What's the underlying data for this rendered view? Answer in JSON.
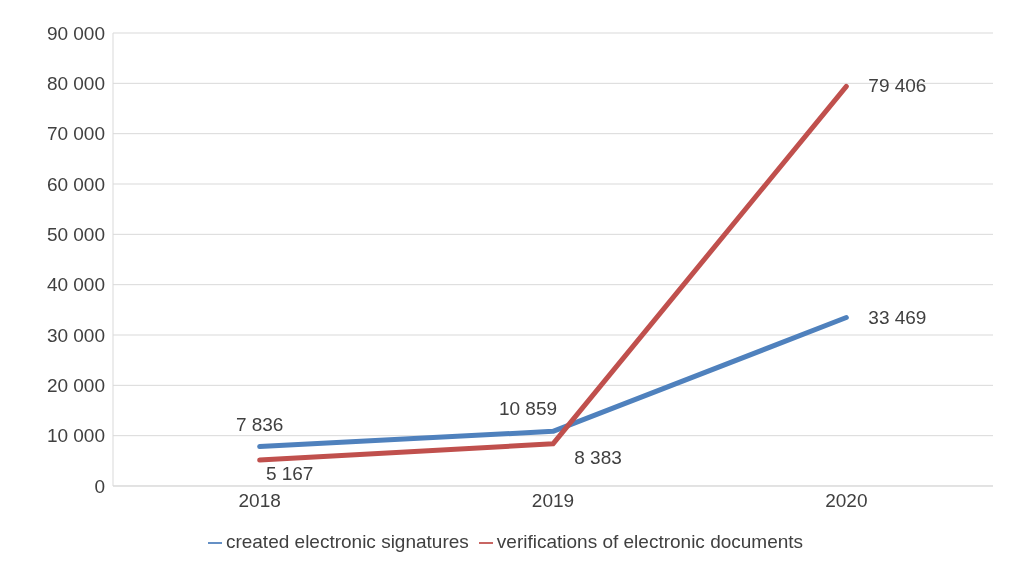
{
  "chart_data": {
    "type": "line",
    "categories": [
      "2018",
      "2019",
      "2020"
    ],
    "series": [
      {
        "name": "created electronic signatures",
        "color": "#4f81bd",
        "values": [
          7836,
          10859,
          33469
        ],
        "value_labels": [
          "7 836",
          "10 859",
          "33 469"
        ]
      },
      {
        "name": "verifications of electronic documents",
        "color": "#c0504d",
        "values": [
          5167,
          8383,
          79406
        ],
        "value_labels": [
          "5 167",
          "8 383",
          "79 406"
        ]
      }
    ],
    "ylim": [
      0,
      90000
    ],
    "yticks": [
      {
        "value": 0,
        "label": "0"
      },
      {
        "value": 10000,
        "label": "10 000"
      },
      {
        "value": 20000,
        "label": "20 000"
      },
      {
        "value": 30000,
        "label": "30 000"
      },
      {
        "value": 40000,
        "label": "40 000"
      },
      {
        "value": 50000,
        "label": "50 000"
      },
      {
        "value": 60000,
        "label": "60 000"
      },
      {
        "value": 70000,
        "label": "70 000"
      },
      {
        "value": 80000,
        "label": "80 000"
      },
      {
        "value": 90000,
        "label": "90 000"
      }
    ],
    "grid": "y",
    "legend": "bottom",
    "marker": "none",
    "line_style": "solid"
  }
}
